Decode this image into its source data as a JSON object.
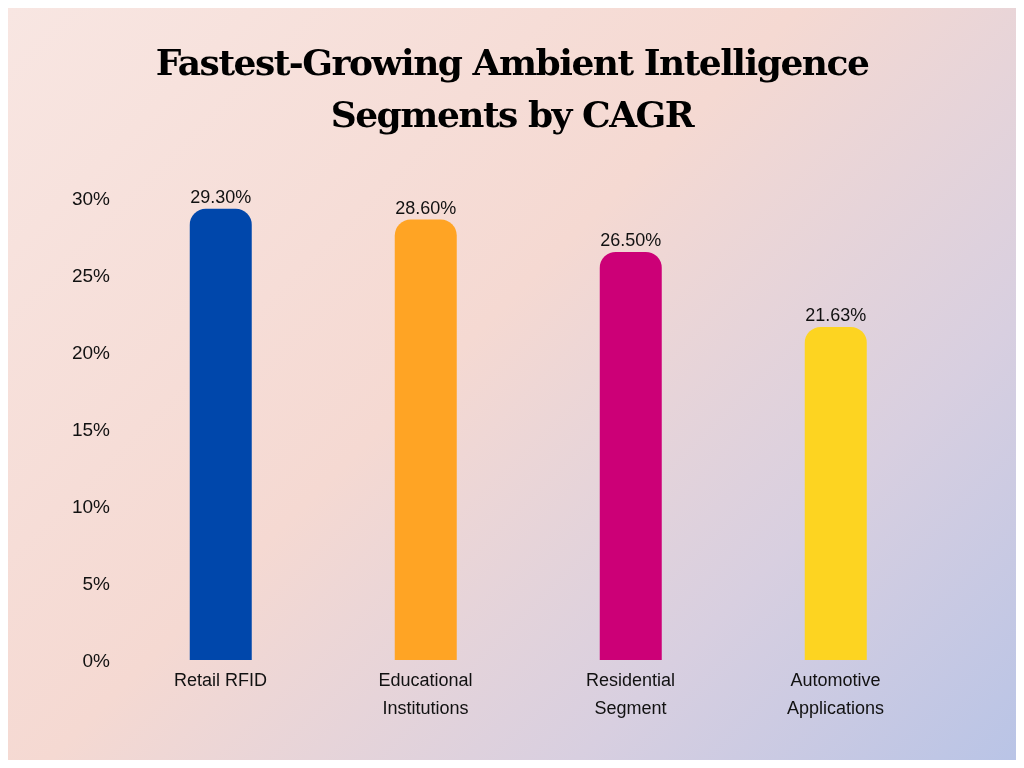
{
  "chart_data": {
    "type": "bar",
    "title": "Fastest-Growing Ambient Intelligence Segments by CAGR",
    "categories": [
      "Retail RFID",
      "Educational Institutions",
      "Residential Segment",
      "Automotive Applications"
    ],
    "values": [
      29.3,
      28.6,
      26.5,
      21.63
    ],
    "colors": [
      "#0047ab",
      "#ffa424",
      "#cc0077",
      "#fdd421"
    ],
    "value_labels": [
      "29.30%",
      "28.60%",
      "26.50%",
      "21.63%"
    ],
    "ylim": [
      0,
      30
    ],
    "yticks": [
      {
        "value": 0,
        "label": "0%"
      },
      {
        "value": 5,
        "label": "5%"
      },
      {
        "value": 10,
        "label": "10%"
      },
      {
        "value": 15,
        "label": "15%"
      },
      {
        "value": 20,
        "label": "20%"
      },
      {
        "value": 25,
        "label": "25%"
      },
      {
        "value": 30,
        "label": "30%"
      }
    ],
    "grid": false,
    "legend": false
  }
}
